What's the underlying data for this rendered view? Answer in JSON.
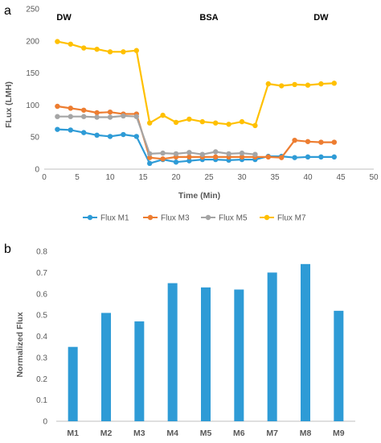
{
  "panels": {
    "a": "a",
    "b": "b"
  },
  "chart_data": [
    {
      "type": "line",
      "title": "",
      "xlabel": "Time (Min)",
      "ylabel": "FLux (LMH)",
      "xlim": [
        0,
        50
      ],
      "ylim": [
        0,
        250
      ],
      "xticks": [
        0,
        5,
        10,
        15,
        20,
        25,
        30,
        35,
        40,
        45,
        50
      ],
      "yticks": [
        0,
        50,
        100,
        150,
        200,
        250
      ],
      "grid": false,
      "legend": "bottom",
      "annotations": [
        {
          "text": "DW",
          "x": 3
        },
        {
          "text": "BSA",
          "x": 25
        },
        {
          "text": "DW",
          "x": 42
        }
      ],
      "series": [
        {
          "name": "Flux M1",
          "color": "#2e9bd6",
          "x": [
            2,
            4,
            6,
            8,
            10,
            12,
            14,
            16,
            18,
            20,
            22,
            24,
            26,
            28,
            30,
            32,
            34,
            36,
            38,
            40,
            42,
            44
          ],
          "y": [
            62,
            61,
            57,
            53,
            51,
            54,
            51,
            9,
            15,
            11,
            13,
            15,
            15,
            14,
            15,
            15,
            20,
            20,
            18,
            19,
            19,
            19
          ]
        },
        {
          "name": "Flux M3",
          "color": "#ed7d31",
          "x": [
            2,
            4,
            6,
            8,
            10,
            12,
            14,
            16,
            18,
            20,
            22,
            24,
            26,
            28,
            30,
            32,
            34,
            36,
            38,
            40,
            42,
            44
          ],
          "y": [
            98,
            95,
            92,
            88,
            89,
            86,
            86,
            18,
            16,
            19,
            19,
            19,
            19,
            19,
            19,
            19,
            19,
            18,
            45,
            43,
            42,
            42
          ]
        },
        {
          "name": "Flux M5",
          "color": "#a5a5a5",
          "x": [
            2,
            4,
            6,
            8,
            10,
            12,
            14,
            16,
            18,
            20,
            22,
            24,
            26,
            28,
            30,
            32
          ],
          "y": [
            82,
            82,
            82,
            81,
            81,
            83,
            82,
            24,
            25,
            24,
            26,
            23,
            27,
            24,
            25,
            23
          ]
        },
        {
          "name": "Flux M7",
          "color": "#ffc000",
          "x": [
            2,
            4,
            6,
            8,
            10,
            12,
            14,
            16,
            18,
            20,
            22,
            24,
            26,
            28,
            30,
            32,
            34,
            36,
            38,
            40,
            42,
            44
          ],
          "y": [
            199,
            195,
            189,
            187,
            183,
            183,
            185,
            72,
            84,
            73,
            78,
            74,
            72,
            70,
            74,
            68,
            133,
            130,
            132,
            131,
            133,
            134
          ]
        }
      ]
    },
    {
      "type": "bar",
      "title": "",
      "xlabel": "",
      "ylabel": "Normalized Flux",
      "ylim": [
        0,
        0.8
      ],
      "yticks": [
        0,
        0.1,
        0.2,
        0.3,
        0.4,
        0.5,
        0.6,
        0.7,
        0.8
      ],
      "ytick_labels": [
        "0",
        "0.1",
        "0.2",
        "0.3",
        "0.4",
        "0.5",
        "0.6",
        "0.7",
        "0.8"
      ],
      "grid": false,
      "color": "#2e9bd6",
      "categories": [
        "M1",
        "M2",
        "M3",
        "M4",
        "M5",
        "M6",
        "M7",
        "M8",
        "M9"
      ],
      "values": [
        0.35,
        0.51,
        0.47,
        0.65,
        0.63,
        0.62,
        0.7,
        0.74,
        0.52
      ]
    }
  ]
}
